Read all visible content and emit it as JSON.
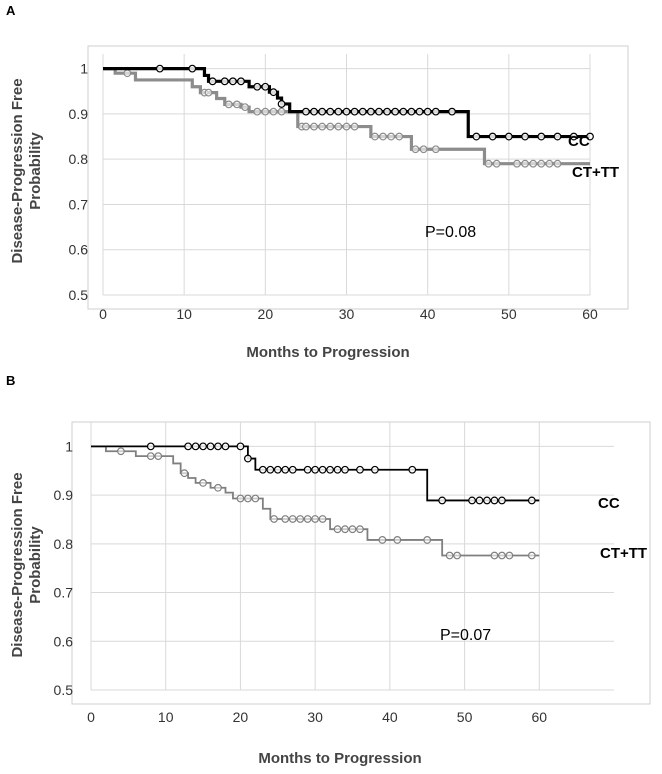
{
  "figure": {
    "panels": [
      "A",
      "B"
    ]
  },
  "chart_data": [
    {
      "panel": "A",
      "type": "line",
      "subtype": "kaplan-meier",
      "title": "",
      "xlabel": "Months to Progression",
      "ylabel_lines": [
        "Disease-Progression Free",
        "Probability"
      ],
      "xlim": [
        0,
        60
      ],
      "ylim": [
        0.5,
        1.05
      ],
      "xticks": [
        "0",
        "10",
        "20",
        "30",
        "40",
        "50",
        "60"
      ],
      "yticks": [
        "0.5",
        "0.6",
        "0.7",
        "0.8",
        "0.9",
        "1"
      ],
      "annotation": "P=0.08",
      "series": [
        {
          "name": "CC",
          "color": "#000000",
          "steps": [
            [
              0,
              1.0
            ],
            [
              12.5,
              0.985
            ],
            [
              13,
              0.972
            ],
            [
              18,
              0.96
            ],
            [
              20.5,
              0.948
            ],
            [
              21.5,
              0.935
            ],
            [
              22,
              0.922
            ],
            [
              23,
              0.905
            ],
            [
              45,
              0.85
            ],
            [
              60,
              0.85
            ]
          ],
          "censored": [
            [
              7,
              1.0
            ],
            [
              11,
              1.0
            ],
            [
              13.5,
              0.972
            ],
            [
              15,
              0.972
            ],
            [
              16,
              0.972
            ],
            [
              17,
              0.972
            ],
            [
              19,
              0.96
            ],
            [
              20,
              0.96
            ],
            [
              21,
              0.948
            ],
            [
              22,
              0.922
            ],
            [
              25,
              0.905
            ],
            [
              26,
              0.905
            ],
            [
              27,
              0.905
            ],
            [
              28,
              0.905
            ],
            [
              29,
              0.905
            ],
            [
              30,
              0.905
            ],
            [
              31,
              0.905
            ],
            [
              32,
              0.905
            ],
            [
              33,
              0.905
            ],
            [
              34,
              0.905
            ],
            [
              35,
              0.905
            ],
            [
              36,
              0.905
            ],
            [
              37,
              0.905
            ],
            [
              38,
              0.905
            ],
            [
              39,
              0.905
            ],
            [
              40,
              0.905
            ],
            [
              41,
              0.905
            ],
            [
              43,
              0.905
            ],
            [
              46,
              0.85
            ],
            [
              48,
              0.85
            ],
            [
              50,
              0.85
            ],
            [
              52,
              0.85
            ],
            [
              54,
              0.85
            ],
            [
              56,
              0.85
            ],
            [
              58,
              0.85
            ],
            [
              60,
              0.85
            ]
          ]
        },
        {
          "name": "CT+TT",
          "color": "#8c8c8c",
          "steps": [
            [
              0,
              1.0
            ],
            [
              1.5,
              0.99
            ],
            [
              4,
              0.975
            ],
            [
              11,
              0.96
            ],
            [
              12,
              0.947
            ],
            [
              14,
              0.934
            ],
            [
              15,
              0.921
            ],
            [
              17,
              0.915
            ],
            [
              18,
              0.905
            ],
            [
              24,
              0.872
            ],
            [
              33,
              0.85
            ],
            [
              38,
              0.822
            ],
            [
              47,
              0.79
            ],
            [
              60,
              0.79
            ]
          ],
          "censored": [
            [
              3,
              0.99
            ],
            [
              12.5,
              0.947
            ],
            [
              13,
              0.947
            ],
            [
              15.5,
              0.921
            ],
            [
              16.5,
              0.921
            ],
            [
              17.5,
              0.915
            ],
            [
              19,
              0.905
            ],
            [
              20,
              0.905
            ],
            [
              21,
              0.905
            ],
            [
              22,
              0.905
            ],
            [
              24.5,
              0.872
            ],
            [
              25,
              0.872
            ],
            [
              26,
              0.872
            ],
            [
              27,
              0.872
            ],
            [
              28,
              0.872
            ],
            [
              29,
              0.872
            ],
            [
              30,
              0.872
            ],
            [
              31,
              0.872
            ],
            [
              33.5,
              0.85
            ],
            [
              34.5,
              0.85
            ],
            [
              35.5,
              0.85
            ],
            [
              36.5,
              0.85
            ],
            [
              38.5,
              0.822
            ],
            [
              39.5,
              0.822
            ],
            [
              41,
              0.822
            ],
            [
              47.5,
              0.79
            ],
            [
              48.5,
              0.79
            ],
            [
              51,
              0.79
            ],
            [
              52,
              0.79
            ],
            [
              53,
              0.79
            ],
            [
              54,
              0.79
            ],
            [
              55,
              0.79
            ],
            [
              56,
              0.79
            ]
          ]
        }
      ]
    },
    {
      "panel": "B",
      "type": "line",
      "subtype": "kaplan-meier",
      "title": "",
      "xlabel": "Months to Progression",
      "ylabel_lines": [
        "Disease-Progression Free",
        "Probability"
      ],
      "xlim": [
        0,
        70
      ],
      "ylim": [
        0.5,
        1.05
      ],
      "xticks": [
        "0",
        "10",
        "20",
        "30",
        "40",
        "50",
        "60"
      ],
      "yticks": [
        "0.5",
        "0.6",
        "0.7",
        "0.8",
        "0.9",
        "1"
      ],
      "annotation": "P=0.07",
      "series": [
        {
          "name": "CC",
          "color": "#000000",
          "steps": [
            [
              0,
              1.0
            ],
            [
              21,
              0.975
            ],
            [
              22,
              0.952
            ],
            [
              45,
              0.889
            ],
            [
              60,
              0.889
            ]
          ],
          "censored": [
            [
              8,
              1.0
            ],
            [
              13,
              1.0
            ],
            [
              14,
              1.0
            ],
            [
              15,
              1.0
            ],
            [
              16,
              1.0
            ],
            [
              17,
              1.0
            ],
            [
              18,
              1.0
            ],
            [
              20,
              1.0
            ],
            [
              21,
              0.975
            ],
            [
              23,
              0.952
            ],
            [
              24,
              0.952
            ],
            [
              25,
              0.952
            ],
            [
              26,
              0.952
            ],
            [
              27,
              0.952
            ],
            [
              29,
              0.952
            ],
            [
              30,
              0.952
            ],
            [
              31,
              0.952
            ],
            [
              32,
              0.952
            ],
            [
              33,
              0.952
            ],
            [
              34,
              0.952
            ],
            [
              36,
              0.952
            ],
            [
              38,
              0.952
            ],
            [
              43,
              0.952
            ],
            [
              47,
              0.889
            ],
            [
              51,
              0.889
            ],
            [
              52,
              0.889
            ],
            [
              53,
              0.889
            ],
            [
              54,
              0.889
            ],
            [
              55,
              0.889
            ],
            [
              59,
              0.889
            ]
          ]
        },
        {
          "name": "CT+TT",
          "color": "#7f7f7f",
          "steps": [
            [
              0,
              1.0
            ],
            [
              2,
              0.99
            ],
            [
              6,
              0.98
            ],
            [
              11,
              0.965
            ],
            [
              12,
              0.945
            ],
            [
              13,
              0.935
            ],
            [
              14,
              0.925
            ],
            [
              16,
              0.915
            ],
            [
              18,
              0.905
            ],
            [
              19,
              0.893
            ],
            [
              23,
              0.872
            ],
            [
              24,
              0.851
            ],
            [
              32,
              0.83
            ],
            [
              37,
              0.808
            ],
            [
              47,
              0.776
            ],
            [
              60,
              0.776
            ]
          ],
          "censored": [
            [
              4,
              0.99
            ],
            [
              8,
              0.98
            ],
            [
              9,
              0.98
            ],
            [
              12.5,
              0.945
            ],
            [
              15,
              0.925
            ],
            [
              17,
              0.915
            ],
            [
              20,
              0.893
            ],
            [
              21,
              0.893
            ],
            [
              22,
              0.893
            ],
            [
              24.5,
              0.851
            ],
            [
              26,
              0.851
            ],
            [
              27,
              0.851
            ],
            [
              28,
              0.851
            ],
            [
              29,
              0.851
            ],
            [
              30,
              0.851
            ],
            [
              31,
              0.851
            ],
            [
              33,
              0.83
            ],
            [
              34,
              0.83
            ],
            [
              35,
              0.83
            ],
            [
              36,
              0.83
            ],
            [
              39,
              0.808
            ],
            [
              41,
              0.808
            ],
            [
              45,
              0.808
            ],
            [
              48,
              0.776
            ],
            [
              49,
              0.776
            ],
            [
              54,
              0.776
            ],
            [
              55,
              0.776
            ],
            [
              56,
              0.776
            ],
            [
              59,
              0.776
            ]
          ]
        }
      ]
    }
  ]
}
